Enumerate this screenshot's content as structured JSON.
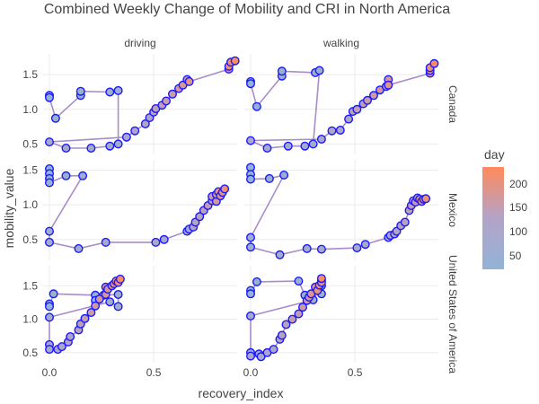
{
  "chart_data": {
    "type": "scatter",
    "title": "Combined Weekly Change of Mobility and CRI in North America",
    "xlabel": "recovery_index",
    "ylabel": "mobility_value",
    "xlim": [
      -0.03,
      0.9
    ],
    "x_ticks": [
      "0.0",
      "0.5"
    ],
    "columns": [
      "driving",
      "walking"
    ],
    "rows": [
      "Canada",
      "Mexico",
      "United States of America"
    ],
    "row_ylim": [
      [
        0.35,
        1.8
      ],
      [
        0.2,
        1.65
      ],
      [
        0.35,
        1.8
      ]
    ],
    "row_ticks": [
      [
        "0.5",
        "1.0",
        "1.5"
      ],
      [
        "0.5",
        "1.0",
        "1.5"
      ],
      [
        "0.5",
        "1.0",
        "1.5"
      ]
    ],
    "legend": {
      "title": "day",
      "ticks": [
        "50",
        "100",
        "150",
        "200"
      ],
      "min": 20,
      "max": 230,
      "color_low": "#92b3d6",
      "color_mid": "#b3a3c8",
      "color_high": "#ff8a5c"
    },
    "line_color": "#a98cc9",
    "marker_edge": "#1a1aff",
    "grid": true,
    "panels": [
      {
        "row": "Canada",
        "col": "driving",
        "points": [
          [
            0.0,
            1.2,
            20
          ],
          [
            0.0,
            1.17,
            27
          ],
          [
            0.03,
            0.87,
            34
          ],
          [
            0.15,
            1.2,
            41
          ],
          [
            0.15,
            1.26,
            48
          ],
          [
            0.29,
            1.25,
            55
          ],
          [
            0.33,
            1.27,
            62
          ],
          [
            0.33,
            0.5,
            69
          ],
          [
            0.29,
            0.47,
            76
          ],
          [
            0.2,
            0.44,
            83
          ],
          [
            0.08,
            0.44,
            90
          ],
          [
            0.0,
            0.53,
            97
          ],
          [
            0.37,
            0.6,
            104
          ],
          [
            0.41,
            0.69,
            111
          ],
          [
            0.46,
            0.79,
            118
          ],
          [
            0.48,
            0.88,
            125
          ],
          [
            0.5,
            0.96,
            132
          ],
          [
            0.51,
            1.01,
            139
          ],
          [
            0.54,
            1.06,
            146
          ],
          [
            0.56,
            1.12,
            153
          ],
          [
            0.59,
            1.22,
            160
          ],
          [
            0.62,
            1.3,
            167
          ],
          [
            0.64,
            1.35,
            174
          ],
          [
            0.66,
            1.43,
            181
          ],
          [
            0.67,
            1.4,
            188
          ],
          [
            0.86,
            1.58,
            195
          ],
          [
            0.86,
            1.62,
            202
          ],
          [
            0.87,
            1.68,
            209
          ],
          [
            0.89,
            1.7,
            216
          ]
        ]
      },
      {
        "row": "Canada",
        "col": "walking",
        "points": [
          [
            0.0,
            1.4,
            20
          ],
          [
            0.0,
            1.37,
            27
          ],
          [
            0.03,
            1.04,
            34
          ],
          [
            0.15,
            1.48,
            41
          ],
          [
            0.15,
            1.55,
            48
          ],
          [
            0.31,
            1.53,
            55
          ],
          [
            0.33,
            1.56,
            62
          ],
          [
            0.3,
            0.5,
            69
          ],
          [
            0.26,
            0.47,
            76
          ],
          [
            0.18,
            0.47,
            83
          ],
          [
            0.08,
            0.44,
            90
          ],
          [
            0.0,
            0.55,
            97
          ],
          [
            0.34,
            0.57,
            104
          ],
          [
            0.39,
            0.69,
            111
          ],
          [
            0.43,
            0.7,
            118
          ],
          [
            0.47,
            0.86,
            125
          ],
          [
            0.49,
            0.97,
            132
          ],
          [
            0.51,
            1.0,
            139
          ],
          [
            0.54,
            1.08,
            146
          ],
          [
            0.56,
            1.13,
            153
          ],
          [
            0.59,
            1.2,
            160
          ],
          [
            0.62,
            1.28,
            167
          ],
          [
            0.65,
            1.33,
            174
          ],
          [
            0.66,
            1.43,
            181
          ],
          [
            0.66,
            1.35,
            188
          ],
          [
            0.86,
            1.52,
            195
          ],
          [
            0.86,
            1.56,
            202
          ],
          [
            0.86,
            1.6,
            209
          ],
          [
            0.88,
            1.66,
            216
          ]
        ]
      },
      {
        "row": "Mexico",
        "col": "driving",
        "points": [
          [
            0.0,
            1.52,
            20
          ],
          [
            0.0,
            1.45,
            27
          ],
          [
            0.0,
            1.38,
            34
          ],
          [
            0.0,
            1.32,
            41
          ],
          [
            0.08,
            1.42,
            48
          ],
          [
            0.16,
            1.42,
            55
          ],
          [
            0.0,
            0.62,
            62
          ],
          [
            0.0,
            0.46,
            69
          ],
          [
            0.14,
            0.37,
            76
          ],
          [
            0.27,
            0.46,
            83
          ],
          [
            0.51,
            0.46,
            90
          ],
          [
            0.55,
            0.5,
            97
          ],
          [
            0.66,
            0.62,
            104
          ],
          [
            0.67,
            0.65,
            111
          ],
          [
            0.69,
            0.68,
            118
          ],
          [
            0.7,
            0.75,
            125
          ],
          [
            0.72,
            0.83,
            132
          ],
          [
            0.74,
            0.92,
            139
          ],
          [
            0.76,
            0.99,
            146
          ],
          [
            0.78,
            1.06,
            153
          ],
          [
            0.78,
            1.12,
            160
          ],
          [
            0.8,
            1.05,
            167
          ],
          [
            0.8,
            1.15,
            174
          ],
          [
            0.81,
            1.19,
            181
          ],
          [
            0.82,
            1.13,
            188
          ],
          [
            0.83,
            1.18,
            195
          ],
          [
            0.84,
            1.23,
            202
          ]
        ]
      },
      {
        "row": "Mexico",
        "col": "walking",
        "points": [
          [
            0.0,
            1.54,
            20
          ],
          [
            0.0,
            1.44,
            27
          ],
          [
            0.0,
            1.37,
            34
          ],
          [
            0.09,
            1.38,
            41
          ],
          [
            0.16,
            1.43,
            48
          ],
          [
            0.0,
            0.53,
            55
          ],
          [
            0.0,
            0.39,
            62
          ],
          [
            0.14,
            0.28,
            69
          ],
          [
            0.27,
            0.37,
            76
          ],
          [
            0.34,
            0.36,
            83
          ],
          [
            0.51,
            0.38,
            90
          ],
          [
            0.55,
            0.43,
            97
          ],
          [
            0.66,
            0.53,
            104
          ],
          [
            0.67,
            0.56,
            111
          ],
          [
            0.69,
            0.58,
            118
          ],
          [
            0.7,
            0.62,
            125
          ],
          [
            0.72,
            0.7,
            132
          ],
          [
            0.74,
            0.75,
            139
          ],
          [
            0.76,
            0.92,
            146
          ],
          [
            0.77,
            0.99,
            153
          ],
          [
            0.78,
            1.06,
            160
          ],
          [
            0.79,
            1.04,
            167
          ],
          [
            0.8,
            1.1,
            174
          ],
          [
            0.81,
            1.08,
            181
          ],
          [
            0.82,
            1.05,
            188
          ],
          [
            0.83,
            1.08,
            195
          ],
          [
            0.84,
            1.09,
            202
          ]
        ]
      },
      {
        "row": "United States of America",
        "col": "driving",
        "points": [
          [
            0.0,
            1.23,
            20
          ],
          [
            0.0,
            1.19,
            27
          ],
          [
            0.02,
            1.38,
            34
          ],
          [
            0.22,
            1.36,
            41
          ],
          [
            0.22,
            1.28,
            48
          ],
          [
            0.26,
            1.36,
            55
          ],
          [
            0.33,
            1.37,
            62
          ],
          [
            0.33,
            1.19,
            69
          ],
          [
            0.29,
            1.26,
            76
          ],
          [
            0.0,
            1.03,
            83
          ],
          [
            0.0,
            0.62,
            90
          ],
          [
            0.0,
            0.55,
            97
          ],
          [
            0.04,
            0.55,
            104
          ],
          [
            0.06,
            0.59,
            111
          ],
          [
            0.09,
            0.66,
            118
          ],
          [
            0.1,
            0.74,
            125
          ],
          [
            0.14,
            0.84,
            132
          ],
          [
            0.15,
            0.93,
            139
          ],
          [
            0.17,
            1.01,
            146
          ],
          [
            0.2,
            1.1,
            153
          ],
          [
            0.22,
            1.2,
            160
          ],
          [
            0.24,
            1.3,
            167
          ],
          [
            0.27,
            1.37,
            174
          ],
          [
            0.27,
            1.48,
            181
          ],
          [
            0.28,
            1.45,
            188
          ],
          [
            0.3,
            1.5,
            195
          ],
          [
            0.31,
            1.53,
            202
          ],
          [
            0.32,
            1.57,
            209
          ],
          [
            0.33,
            1.55,
            216
          ],
          [
            0.34,
            1.6,
            223
          ]
        ]
      },
      {
        "row": "United States of America",
        "col": "walking",
        "points": [
          [
            0.0,
            1.43,
            20
          ],
          [
            0.0,
            1.38,
            27
          ],
          [
            0.03,
            1.56,
            34
          ],
          [
            0.23,
            1.57,
            41
          ],
          [
            0.26,
            1.36,
            48
          ],
          [
            0.34,
            1.38,
            55
          ],
          [
            0.34,
            1.5,
            62
          ],
          [
            0.3,
            1.29,
            69
          ],
          [
            0.0,
            1.05,
            76
          ],
          [
            0.0,
            0.5,
            83
          ],
          [
            0.0,
            0.45,
            90
          ],
          [
            0.04,
            0.48,
            97
          ],
          [
            0.05,
            0.44,
            104
          ],
          [
            0.08,
            0.5,
            111
          ],
          [
            0.11,
            0.55,
            118
          ],
          [
            0.14,
            0.7,
            125
          ],
          [
            0.15,
            0.76,
            132
          ],
          [
            0.17,
            0.92,
            139
          ],
          [
            0.2,
            1.0,
            146
          ],
          [
            0.23,
            1.08,
            153
          ],
          [
            0.25,
            1.18,
            160
          ],
          [
            0.27,
            1.28,
            167
          ],
          [
            0.28,
            1.33,
            174
          ],
          [
            0.29,
            1.38,
            181
          ],
          [
            0.31,
            1.48,
            188
          ],
          [
            0.32,
            1.43,
            195
          ],
          [
            0.33,
            1.51,
            202
          ],
          [
            0.34,
            1.58,
            209
          ],
          [
            0.34,
            1.55,
            216
          ],
          [
            0.34,
            1.61,
            223
          ]
        ]
      }
    ]
  }
}
